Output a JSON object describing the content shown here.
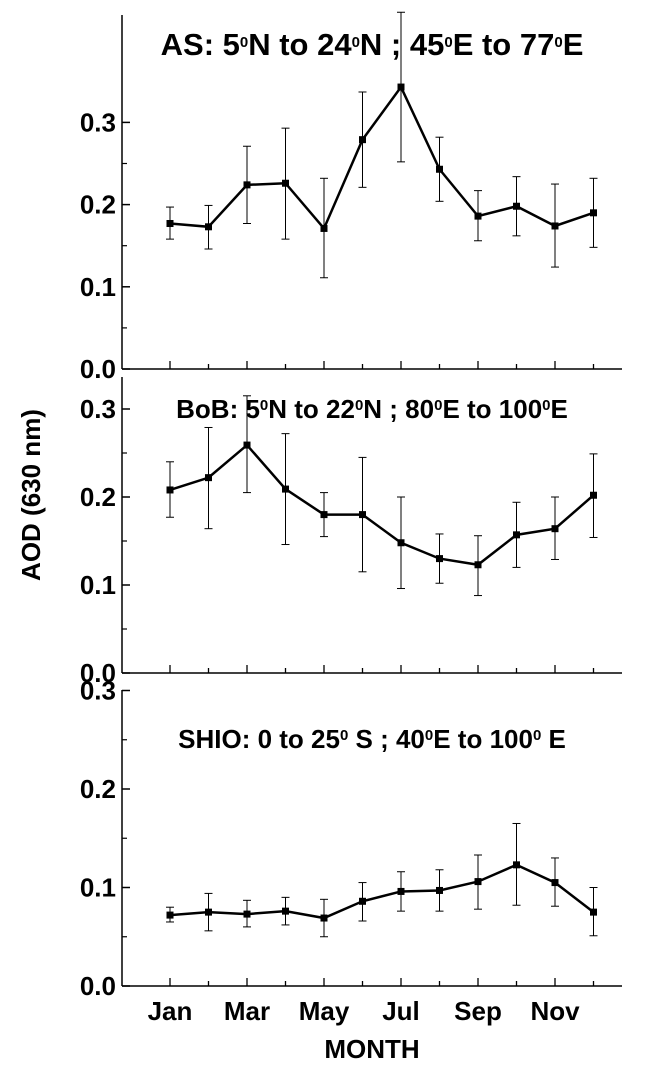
{
  "chart_data": [
    {
      "type": "line",
      "title_parts": [
        "AS: 5",
        "0",
        "N to 24",
        "0",
        "N ; 45",
        "0",
        "E to 77",
        "0",
        "E"
      ],
      "ylim": [
        0,
        0.35
      ],
      "yticks": [
        "0.0",
        "0.1",
        "0.2",
        "0.3"
      ],
      "x": [
        1,
        2,
        3,
        4,
        5,
        6,
        7,
        8,
        9,
        10,
        11,
        12
      ],
      "values": [
        0.177,
        0.173,
        0.224,
        0.226,
        0.171,
        0.279,
        0.343,
        0.243,
        0.186,
        0.198,
        0.174,
        0.19
      ],
      "err_low": [
        0.158,
        0.146,
        0.177,
        0.158,
        0.111,
        0.221,
        0.252,
        0.204,
        0.156,
        0.162,
        0.124,
        0.148
      ],
      "err_high": [
        0.197,
        0.199,
        0.271,
        0.293,
        0.232,
        0.337,
        0.434,
        0.282,
        0.217,
        0.234,
        0.225,
        0.232
      ]
    },
    {
      "type": "line",
      "title_parts": [
        "BoB: 5",
        "0",
        "N to 22",
        "0",
        "N ; 80",
        "0",
        "E to 100",
        "0",
        "E"
      ],
      "ylim": [
        0,
        0.31
      ],
      "yticks": [
        "0.0",
        "0.1",
        "0.2",
        "0.3"
      ],
      "x": [
        1,
        2,
        3,
        4,
        5,
        6,
        7,
        8,
        9,
        10,
        11,
        12
      ],
      "values": [
        0.208,
        0.222,
        0.259,
        0.209,
        0.18,
        0.18,
        0.148,
        0.13,
        0.123,
        0.157,
        0.164,
        0.202
      ],
      "err_low": [
        0.177,
        0.164,
        0.205,
        0.146,
        0.155,
        0.115,
        0.096,
        0.102,
        0.088,
        0.12,
        0.129,
        0.154
      ],
      "err_high": [
        0.24,
        0.279,
        0.315,
        0.272,
        0.205,
        0.245,
        0.2,
        0.158,
        0.156,
        0.194,
        0.2,
        0.249
      ]
    },
    {
      "type": "line",
      "title_parts": [
        "SHIO: 0 to 25",
        "0",
        " S ; 40",
        "0",
        "E to 100",
        "0",
        " E"
      ],
      "ylim": [
        0,
        0.3
      ],
      "yticks": [
        "0.0",
        "0.1",
        "0.2",
        "0.3"
      ],
      "x": [
        1,
        2,
        3,
        4,
        5,
        6,
        7,
        8,
        9,
        10,
        11,
        12
      ],
      "values": [
        0.072,
        0.075,
        0.073,
        0.076,
        0.069,
        0.086,
        0.096,
        0.097,
        0.106,
        0.123,
        0.105,
        0.075
      ],
      "err_low": [
        0.065,
        0.056,
        0.06,
        0.062,
        0.05,
        0.066,
        0.076,
        0.076,
        0.078,
        0.082,
        0.081,
        0.051
      ],
      "err_high": [
        0.08,
        0.094,
        0.087,
        0.09,
        0.088,
        0.105,
        0.116,
        0.118,
        0.133,
        0.165,
        0.13,
        0.1
      ]
    }
  ],
  "xtick_labels": [
    "Jan",
    "Mar",
    "May",
    "Jul",
    "Sep",
    "Nov"
  ],
  "xlabel": "MONTH",
  "ylabel": "AOD  (630 nm)"
}
